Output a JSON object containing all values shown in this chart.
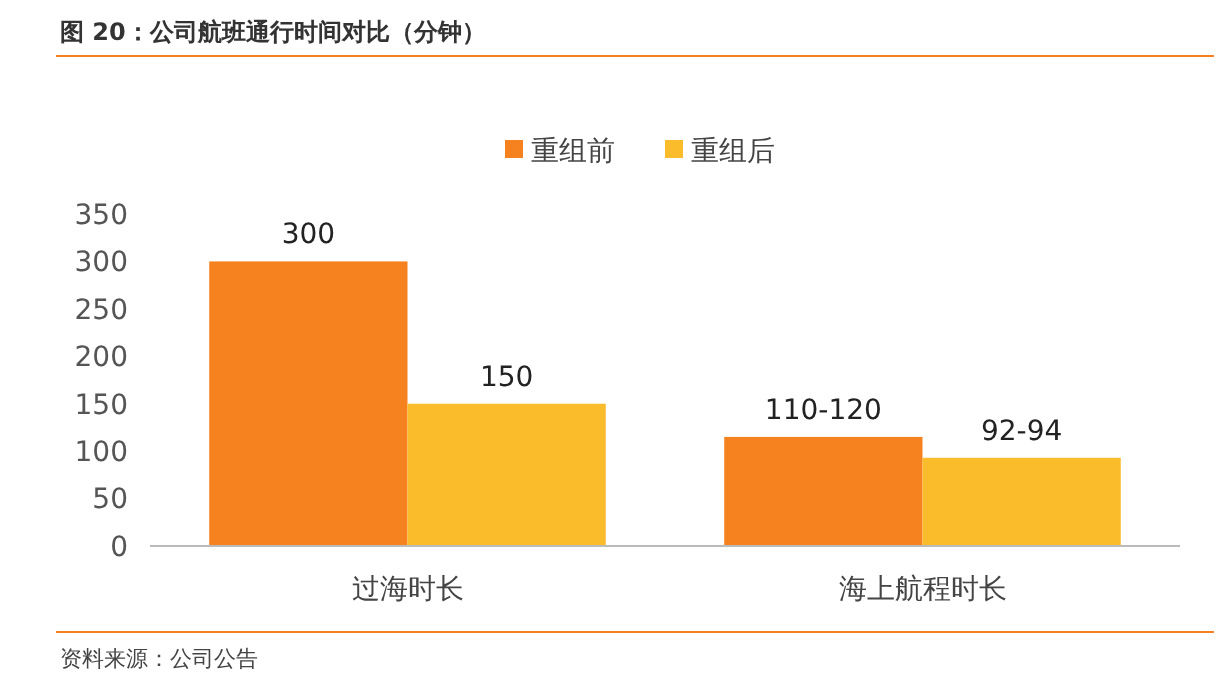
{
  "chart_data": {
    "type": "bar",
    "title": "图 20：公司航班通行时间对比（分钟）",
    "categories": [
      "过海时长",
      "海上航程时长"
    ],
    "series": [
      {
        "name": "重组前",
        "color": "#f5821f",
        "values": [
          300,
          115
        ],
        "value_labels": [
          "300",
          "110-120"
        ]
      },
      {
        "name": "重组后",
        "color": "#fbbc2c",
        "values": [
          150,
          93
        ],
        "value_labels": [
          "150",
          "92-94"
        ]
      }
    ],
    "ylim": [
      0,
      350
    ],
    "yticks": [
      0,
      50,
      100,
      150,
      200,
      250,
      300,
      350
    ],
    "grid": false,
    "legend": "top",
    "annotations": [
      "资料来源：公司公告"
    ]
  }
}
